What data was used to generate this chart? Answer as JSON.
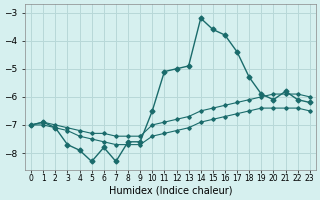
{
  "xlabel": "Humidex (Indice chaleur)",
  "ylabel": "",
  "background_color": "#d6f0ef",
  "grid_color": "#b8d8d8",
  "line_color": "#1a6b6b",
  "x": [
    0,
    1,
    2,
    3,
    4,
    5,
    6,
    7,
    8,
    9,
    10,
    11,
    12,
    13,
    14,
    15,
    16,
    17,
    18,
    19,
    20,
    21,
    22,
    23
  ],
  "y_main": [
    -7.0,
    -6.9,
    -7.1,
    -7.7,
    -7.9,
    -8.3,
    -7.8,
    -8.3,
    -7.6,
    -7.6,
    -6.5,
    -5.1,
    -5.0,
    -4.9,
    -3.2,
    -3.6,
    -3.8,
    -4.4,
    -5.3,
    -5.9,
    -6.1,
    -5.8,
    -6.1,
    -6.2
  ],
  "y_upper": [
    -7.0,
    -6.9,
    -7.0,
    -7.1,
    -7.2,
    -7.3,
    -7.3,
    -7.4,
    -7.4,
    -7.4,
    -7.0,
    -6.9,
    -6.8,
    -6.7,
    -6.5,
    -6.4,
    -6.3,
    -6.2,
    -6.1,
    -6.0,
    -5.9,
    -5.9,
    -5.9,
    -6.0
  ],
  "y_lower": [
    -7.0,
    -7.0,
    -7.1,
    -7.2,
    -7.4,
    -7.5,
    -7.6,
    -7.7,
    -7.7,
    -7.7,
    -7.4,
    -7.3,
    -7.2,
    -7.1,
    -6.9,
    -6.8,
    -6.7,
    -6.6,
    -6.5,
    -6.4,
    -6.4,
    -6.4,
    -6.4,
    -6.5
  ],
  "ylim": [
    -8.6,
    -2.7
  ],
  "xlim": [
    -0.5,
    23.5
  ],
  "yticks": [
    -8,
    -7,
    -6,
    -5,
    -4,
    -3
  ],
  "xtick_labels": [
    "0",
    "1",
    "2",
    "3",
    "4",
    "5",
    "6",
    "7",
    "8",
    "9",
    "10",
    "11",
    "12",
    "13",
    "14",
    "15",
    "16",
    "17",
    "18",
    "19",
    "20",
    "21",
    "22",
    "23"
  ]
}
